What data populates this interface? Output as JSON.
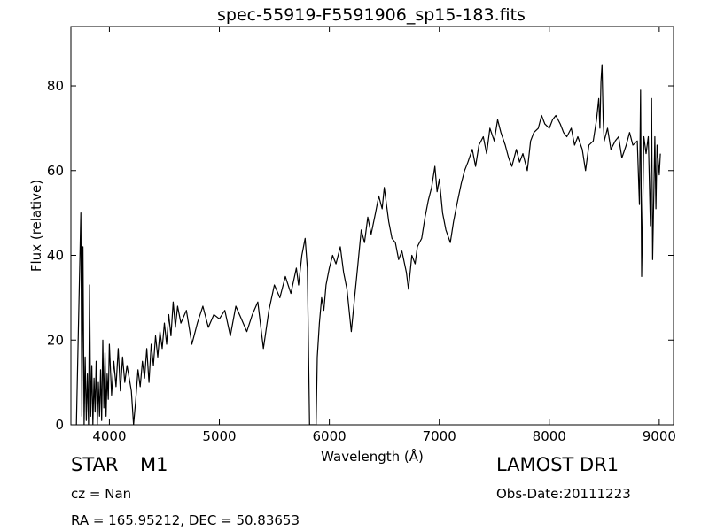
{
  "chart_data": {
    "type": "line",
    "title": "spec-55919-F5591906_sp15-183.fits",
    "xlabel": "Wavelength (Å)",
    "ylabel": "Flux (relative)",
    "xlim": [
      3650,
      9130
    ],
    "ylim": [
      0,
      94
    ],
    "xticks": [
      4000,
      5000,
      6000,
      7000,
      8000,
      9000
    ],
    "yticks": [
      0,
      20,
      40,
      60,
      80
    ],
    "grid": false,
    "series": [
      {
        "color": "#000000",
        "points": [
          [
            3700,
            0
          ],
          [
            3740,
            50
          ],
          [
            3750,
            2
          ],
          [
            3760,
            42
          ],
          [
            3770,
            0
          ],
          [
            3780,
            16
          ],
          [
            3790,
            1
          ],
          [
            3800,
            12
          ],
          [
            3810,
            0
          ],
          [
            3820,
            33
          ],
          [
            3830,
            2
          ],
          [
            3840,
            14
          ],
          [
            3850,
            0
          ],
          [
            3860,
            11
          ],
          [
            3870,
            3
          ],
          [
            3880,
            15
          ],
          [
            3890,
            0
          ],
          [
            3900,
            10
          ],
          [
            3910,
            2
          ],
          [
            3920,
            13
          ],
          [
            3930,
            1
          ],
          [
            3940,
            20
          ],
          [
            3950,
            4
          ],
          [
            3960,
            17
          ],
          [
            3970,
            2
          ],
          [
            3980,
            12
          ],
          [
            3990,
            6
          ],
          [
            4000,
            19
          ],
          [
            4020,
            7
          ],
          [
            4040,
            15
          ],
          [
            4060,
            9
          ],
          [
            4080,
            18
          ],
          [
            4100,
            8
          ],
          [
            4120,
            16
          ],
          [
            4140,
            10
          ],
          [
            4160,
            14
          ],
          [
            4180,
            11
          ],
          [
            4200,
            8
          ],
          [
            4220,
            0
          ],
          [
            4240,
            6
          ],
          [
            4260,
            13
          ],
          [
            4280,
            9
          ],
          [
            4300,
            15
          ],
          [
            4320,
            11
          ],
          [
            4340,
            18
          ],
          [
            4360,
            10
          ],
          [
            4380,
            19
          ],
          [
            4400,
            14
          ],
          [
            4420,
            21
          ],
          [
            4440,
            16
          ],
          [
            4460,
            22
          ],
          [
            4480,
            18
          ],
          [
            4500,
            24
          ],
          [
            4520,
            19
          ],
          [
            4540,
            26
          ],
          [
            4560,
            21
          ],
          [
            4580,
            29
          ],
          [
            4600,
            23
          ],
          [
            4620,
            28
          ],
          [
            4650,
            24
          ],
          [
            4700,
            27
          ],
          [
            4750,
            19
          ],
          [
            4800,
            24
          ],
          [
            4850,
            28
          ],
          [
            4900,
            23
          ],
          [
            4950,
            26
          ],
          [
            5000,
            25
          ],
          [
            5050,
            27
          ],
          [
            5100,
            21
          ],
          [
            5150,
            28
          ],
          [
            5200,
            25
          ],
          [
            5250,
            22
          ],
          [
            5300,
            26
          ],
          [
            5350,
            29
          ],
          [
            5400,
            18
          ],
          [
            5450,
            27
          ],
          [
            5500,
            33
          ],
          [
            5550,
            30
          ],
          [
            5600,
            35
          ],
          [
            5650,
            31
          ],
          [
            5700,
            37
          ],
          [
            5720,
            33
          ],
          [
            5750,
            40
          ],
          [
            5780,
            44
          ],
          [
            5800,
            37
          ],
          [
            5820,
            0
          ],
          [
            5880,
            0
          ],
          [
            5890,
            16
          ],
          [
            5910,
            24
          ],
          [
            5930,
            30
          ],
          [
            5950,
            27
          ],
          [
            5970,
            33
          ],
          [
            6000,
            37
          ],
          [
            6030,
            40
          ],
          [
            6060,
            38
          ],
          [
            6100,
            42
          ],
          [
            6130,
            36
          ],
          [
            6160,
            32
          ],
          [
            6200,
            22
          ],
          [
            6230,
            30
          ],
          [
            6260,
            38
          ],
          [
            6290,
            46
          ],
          [
            6320,
            43
          ],
          [
            6350,
            49
          ],
          [
            6380,
            45
          ],
          [
            6420,
            50
          ],
          [
            6450,
            54
          ],
          [
            6480,
            51
          ],
          [
            6500,
            56
          ],
          [
            6520,
            52
          ],
          [
            6540,
            48
          ],
          [
            6570,
            44
          ],
          [
            6600,
            43
          ],
          [
            6630,
            39
          ],
          [
            6660,
            41
          ],
          [
            6700,
            36
          ],
          [
            6720,
            32
          ],
          [
            6750,
            40
          ],
          [
            6780,
            38
          ],
          [
            6800,
            42
          ],
          [
            6840,
            44
          ],
          [
            6870,
            49
          ],
          [
            6900,
            53
          ],
          [
            6930,
            56
          ],
          [
            6960,
            61
          ],
          [
            6980,
            55
          ],
          [
            7000,
            58
          ],
          [
            7030,
            50
          ],
          [
            7060,
            46
          ],
          [
            7100,
            43
          ],
          [
            7130,
            48
          ],
          [
            7160,
            52
          ],
          [
            7200,
            57
          ],
          [
            7230,
            60
          ],
          [
            7260,
            62
          ],
          [
            7300,
            65
          ],
          [
            7330,
            61
          ],
          [
            7360,
            66
          ],
          [
            7400,
            68
          ],
          [
            7430,
            64
          ],
          [
            7460,
            70
          ],
          [
            7500,
            67
          ],
          [
            7530,
            72
          ],
          [
            7560,
            69
          ],
          [
            7600,
            66
          ],
          [
            7630,
            63
          ],
          [
            7660,
            61
          ],
          [
            7700,
            65
          ],
          [
            7730,
            62
          ],
          [
            7760,
            64
          ],
          [
            7800,
            60
          ],
          [
            7830,
            67
          ],
          [
            7860,
            69
          ],
          [
            7900,
            70
          ],
          [
            7930,
            73
          ],
          [
            7960,
            71
          ],
          [
            8000,
            70
          ],
          [
            8030,
            72
          ],
          [
            8060,
            73
          ],
          [
            8100,
            71
          ],
          [
            8130,
            69
          ],
          [
            8160,
            68
          ],
          [
            8200,
            70
          ],
          [
            8230,
            66
          ],
          [
            8260,
            68
          ],
          [
            8300,
            65
          ],
          [
            8330,
            60
          ],
          [
            8360,
            66
          ],
          [
            8400,
            67
          ],
          [
            8430,
            72
          ],
          [
            8450,
            77
          ],
          [
            8460,
            70
          ],
          [
            8470,
            81
          ],
          [
            8480,
            85
          ],
          [
            8490,
            72
          ],
          [
            8500,
            67
          ],
          [
            8530,
            70
          ],
          [
            8560,
            65
          ],
          [
            8600,
            67
          ],
          [
            8630,
            68
          ],
          [
            8660,
            63
          ],
          [
            8700,
            66
          ],
          [
            8730,
            69
          ],
          [
            8760,
            66
          ],
          [
            8800,
            67
          ],
          [
            8820,
            52
          ],
          [
            8830,
            79
          ],
          [
            8840,
            35
          ],
          [
            8860,
            68
          ],
          [
            8880,
            64
          ],
          [
            8900,
            68
          ],
          [
            8920,
            47
          ],
          [
            8930,
            77
          ],
          [
            8940,
            39
          ],
          [
            8960,
            68
          ],
          [
            8970,
            51
          ],
          [
            8980,
            66
          ],
          [
            9000,
            59
          ],
          [
            9010,
            64
          ]
        ]
      }
    ]
  },
  "info": {
    "object_type": "STAR",
    "subclass": "M1",
    "survey": "LAMOST DR1",
    "cz": "cz = Nan",
    "obs_date": "Obs-Date:20111223",
    "coords": "RA = 165.95212, DEC = 50.83653"
  }
}
